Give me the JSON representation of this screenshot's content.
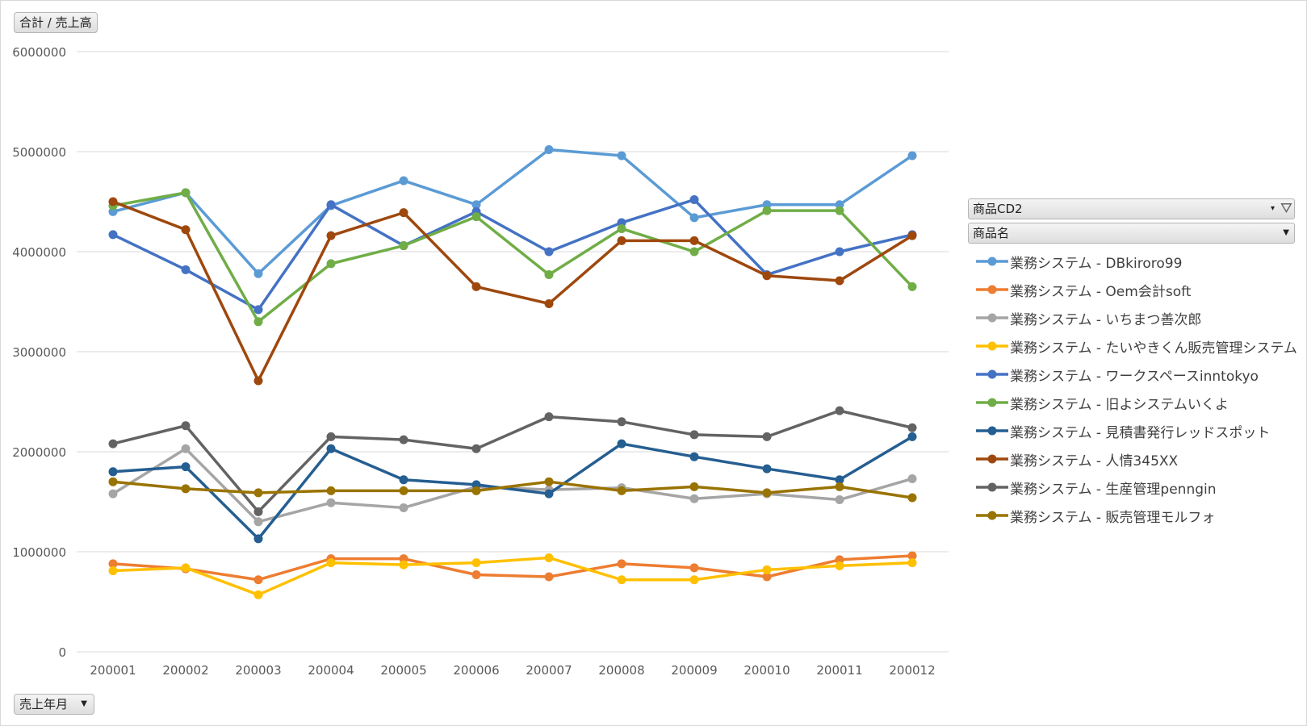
{
  "value_field_label": "合計 / 売上高",
  "axis_field_label": "売上年月",
  "legend": {
    "header1": "商品CD2",
    "header2": "商品名"
  },
  "chart_data": {
    "type": "line",
    "categories": [
      "200001",
      "200002",
      "200003",
      "200004",
      "200005",
      "200006",
      "200007",
      "200008",
      "200009",
      "200010",
      "200011",
      "200012"
    ],
    "ylim": [
      0,
      6000000
    ],
    "yticks": [
      0,
      1000000,
      2000000,
      3000000,
      4000000,
      5000000,
      6000000
    ],
    "grid": true,
    "legend_position": "right",
    "series": [
      {
        "name": "業務システム - DBkiroro99",
        "color": "#5b9bd5",
        "values": [
          4400000,
          4590000,
          3780000,
          4460000,
          4710000,
          4470000,
          5020000,
          4960000,
          4340000,
          4470000,
          4470000,
          4960000
        ]
      },
      {
        "name": "業務システム - Oem会計soft",
        "color": "#ed7d31",
        "values": [
          880000,
          830000,
          720000,
          930000,
          930000,
          770000,
          750000,
          880000,
          840000,
          750000,
          920000,
          960000
        ]
      },
      {
        "name": "業務システム - いちまつ善次郎",
        "color": "#a5a5a5",
        "values": [
          1580000,
          2030000,
          1300000,
          1490000,
          1440000,
          1650000,
          1620000,
          1640000,
          1530000,
          1580000,
          1520000,
          1730000
        ]
      },
      {
        "name": "業務システム - たいやきくん販売管理システム",
        "color": "#ffc000",
        "values": [
          810000,
          840000,
          570000,
          890000,
          870000,
          890000,
          940000,
          720000,
          720000,
          820000,
          860000,
          890000
        ]
      },
      {
        "name": "業務システム - ワークスペースinntokyo",
        "color": "#4472c4",
        "values": [
          4170000,
          3820000,
          3420000,
          4470000,
          4060000,
          4400000,
          4000000,
          4290000,
          4520000,
          3770000,
          4000000,
          4170000
        ]
      },
      {
        "name": "業務システム - 旧よシステムいくよ",
        "color": "#70ad47",
        "values": [
          4460000,
          4590000,
          3300000,
          3880000,
          4060000,
          4350000,
          3770000,
          4230000,
          4000000,
          4410000,
          4410000,
          3650000
        ]
      },
      {
        "name": "業務システム - 見積書発行レッドスポット",
        "color": "#255e91",
        "values": [
          1800000,
          1850000,
          1130000,
          2030000,
          1720000,
          1670000,
          1580000,
          2080000,
          1950000,
          1830000,
          1720000,
          2150000
        ]
      },
      {
        "name": "業務システム - 人情345XX",
        "color": "#9e480e",
        "values": [
          4500000,
          4220000,
          2710000,
          4160000,
          4390000,
          3650000,
          3480000,
          4110000,
          4110000,
          3760000,
          3710000,
          4160000
        ]
      },
      {
        "name": "業務システム - 生産管理penngin",
        "color": "#636363",
        "values": [
          2080000,
          2260000,
          1400000,
          2150000,
          2120000,
          2030000,
          2350000,
          2300000,
          2170000,
          2150000,
          2410000,
          2240000
        ]
      },
      {
        "name": "業務システム - 販売管理モルフォ",
        "color": "#997300",
        "values": [
          1700000,
          1630000,
          1590000,
          1610000,
          1610000,
          1610000,
          1700000,
          1610000,
          1650000,
          1590000,
          1650000,
          1540000
        ]
      }
    ]
  }
}
